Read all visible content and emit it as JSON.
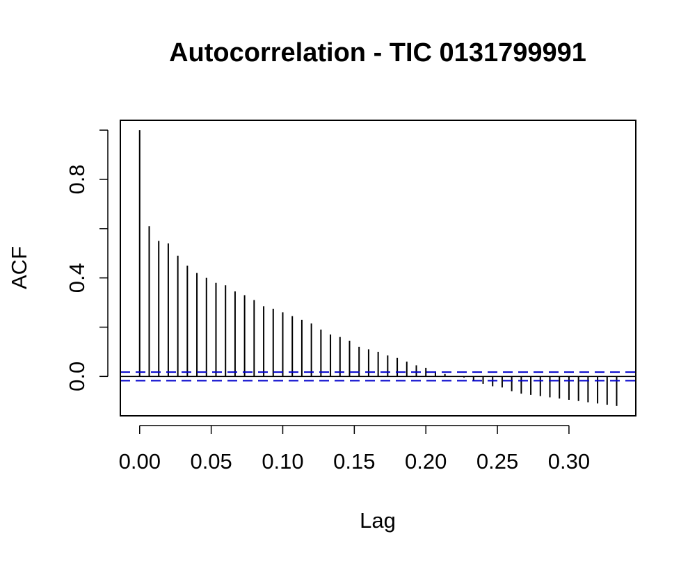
{
  "chart_data": {
    "type": "bar",
    "title": "Autocorrelation - TIC 0131799991",
    "xlabel": "Lag",
    "ylabel": "ACF",
    "xlim": [
      -0.0135,
      0.3467
    ],
    "ylim": [
      -0.16,
      1.04
    ],
    "x_ticks": [
      0.0,
      0.05,
      0.1,
      0.15,
      0.2,
      0.25,
      0.3
    ],
    "x_tick_labels": [
      "0.00",
      "0.05",
      "0.10",
      "0.15",
      "0.20",
      "0.25",
      "0.30"
    ],
    "y_ticks": [
      0.0,
      0.2,
      0.4,
      0.6,
      0.8,
      1.0
    ],
    "y_tick_labels": [
      "0.0",
      "",
      "0.4",
      "",
      "0.8",
      ""
    ],
    "confidence_bound": 0.0175,
    "lag_step": 0.006667,
    "colors": {
      "bars": "#000000",
      "bounds": "#0000cc",
      "axes": "#000000"
    },
    "series": [
      {
        "lags": [
          0.0,
          0.00667,
          0.01333,
          0.02,
          0.02667,
          0.03333,
          0.04,
          0.04667,
          0.05333,
          0.06,
          0.06667,
          0.07333,
          0.08,
          0.08667,
          0.09333,
          0.1,
          0.10667,
          0.11333,
          0.12,
          0.12667,
          0.13333,
          0.14,
          0.14667,
          0.15333,
          0.16,
          0.16667,
          0.17333,
          0.18,
          0.18667,
          0.19333,
          0.2,
          0.20667,
          0.21333,
          0.22,
          0.22667,
          0.23333,
          0.24,
          0.24667,
          0.25333,
          0.26,
          0.26667,
          0.27333,
          0.28,
          0.28667,
          0.29333,
          0.3,
          0.30667,
          0.31333,
          0.32,
          0.32667,
          0.33333
        ],
        "values": [
          1.0,
          0.61,
          0.55,
          0.54,
          0.49,
          0.45,
          0.42,
          0.4,
          0.38,
          0.37,
          0.345,
          0.33,
          0.31,
          0.285,
          0.275,
          0.26,
          0.245,
          0.23,
          0.215,
          0.19,
          0.17,
          0.16,
          0.145,
          0.12,
          0.11,
          0.1,
          0.085,
          0.075,
          0.06,
          0.045,
          0.035,
          0.02,
          0.01,
          0.0,
          -0.005,
          -0.02,
          -0.03,
          -0.04,
          -0.045,
          -0.06,
          -0.07,
          -0.075,
          -0.08,
          -0.085,
          -0.09,
          -0.095,
          -0.1,
          -0.105,
          -0.11,
          -0.115,
          -0.12
        ]
      }
    ]
  }
}
